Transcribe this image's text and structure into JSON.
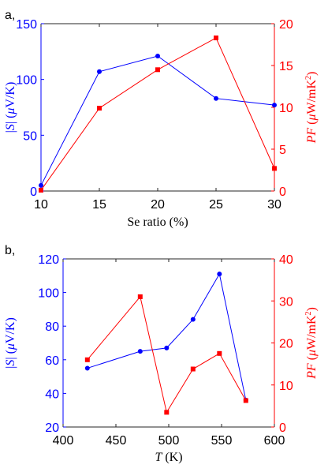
{
  "colors": {
    "left": "#0000ff",
    "right": "#ff0000",
    "axis": "#262626"
  },
  "chart_data": [
    {
      "type": "line",
      "panel_label": "a,",
      "x_ticks": [
        "10",
        "15",
        "20",
        "25",
        "30"
      ],
      "xlim": [
        10,
        30
      ],
      "xlabel": "Se ratio (%)",
      "ylim_left": [
        0,
        150
      ],
      "ylim_right": [
        0,
        20
      ],
      "y_left_ticks": [
        "0",
        "50",
        "100",
        "150"
      ],
      "y_right_ticks": [
        "0",
        "5",
        "10",
        "15",
        "20"
      ],
      "ylabel_left": {
        "pre": "|",
        "var": "S",
        "post": "| (",
        "mu": "μ",
        "unit": "V/K)"
      },
      "ylabel_right": {
        "var": "PF",
        "pre": " (",
        "mu": "μ",
        "unit": "W/mK",
        "sup": "2",
        "post": ")"
      },
      "series": [
        {
          "axis": "left",
          "marker": "circle",
          "x": [
            10,
            15,
            20,
            25,
            30
          ],
          "values": [
            5,
            107,
            121,
            83,
            77
          ]
        },
        {
          "axis": "right",
          "marker": "square",
          "x": [
            10,
            15,
            20,
            25,
            30
          ],
          "values": [
            0.1,
            9.9,
            14.5,
            18.3,
            2.7
          ]
        }
      ]
    },
    {
      "type": "line",
      "panel_label": "b,",
      "x_ticks": [
        "400",
        "450",
        "500",
        "550",
        "600"
      ],
      "xlim": [
        400,
        600
      ],
      "xlabel": {
        "var": "T",
        "unit": " (K)"
      },
      "ylim_left": [
        20,
        120
      ],
      "ylim_right": [
        0,
        40
      ],
      "y_left_ticks": [
        "20",
        "40",
        "60",
        "80",
        "100",
        "120"
      ],
      "y_right_ticks": [
        "0",
        "10",
        "20",
        "30",
        "40"
      ],
      "ylabel_left": {
        "pre": "|",
        "var": "S",
        "post": "| (",
        "mu": "μ",
        "unit": "V/K)"
      },
      "ylabel_right": {
        "var": "PF",
        "pre": " (",
        "mu": "μ",
        "unit": "W/mK",
        "sup": "2",
        "post": ")"
      },
      "series": [
        {
          "axis": "left",
          "marker": "circle",
          "x": [
            423,
            473,
            498,
            523,
            548,
            573
          ],
          "values": [
            55,
            65,
            67,
            84,
            111,
            36
          ]
        },
        {
          "axis": "right",
          "marker": "square",
          "x": [
            423,
            473,
            498,
            523,
            548,
            573
          ],
          "values": [
            16,
            31,
            3.5,
            13.8,
            17.5,
            6.3
          ]
        }
      ]
    }
  ]
}
